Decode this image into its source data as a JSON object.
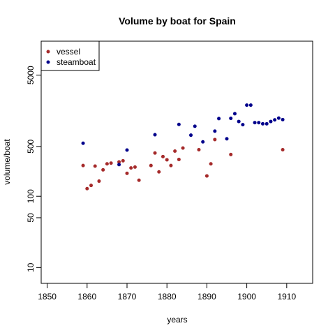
{
  "chart_data": {
    "type": "scatter",
    "title": "Volume by boat for Spain",
    "xlabel": "years",
    "ylabel": "volume/boat",
    "xlim": [
      1848.5,
      1916.5
    ],
    "ylim": [
      6,
      15000
    ],
    "ylog": true,
    "x_ticks": [
      1850,
      1860,
      1870,
      1880,
      1890,
      1900,
      1910
    ],
    "y_ticks": [
      10,
      50,
      100,
      500,
      5000
    ],
    "legend_position": "top-left",
    "series": [
      {
        "name": "vessel",
        "color": "#a52a2a",
        "points": [
          [
            1859,
            270
          ],
          [
            1860,
            128
          ],
          [
            1861,
            142
          ],
          [
            1862,
            265
          ],
          [
            1863,
            163
          ],
          [
            1864,
            235
          ],
          [
            1865,
            285
          ],
          [
            1866,
            292
          ],
          [
            1868,
            303
          ],
          [
            1869,
            315
          ],
          [
            1870,
            210
          ],
          [
            1871,
            250
          ],
          [
            1872,
            257
          ],
          [
            1873,
            168
          ],
          [
            1876,
            270
          ],
          [
            1877,
            405
          ],
          [
            1878,
            220
          ],
          [
            1879,
            360
          ],
          [
            1880,
            325
          ],
          [
            1881,
            270
          ],
          [
            1882,
            430
          ],
          [
            1883,
            328
          ],
          [
            1884,
            475
          ],
          [
            1888,
            450
          ],
          [
            1890,
            193
          ],
          [
            1891,
            285
          ],
          [
            1892,
            625
          ],
          [
            1896,
            385
          ],
          [
            1909,
            450
          ]
        ]
      },
      {
        "name": "steamboat",
        "color": "#00008b",
        "points": [
          [
            1859,
            555
          ],
          [
            1868,
            278
          ],
          [
            1870,
            445
          ],
          [
            1877,
            730
          ],
          [
            1883,
            1020
          ],
          [
            1886,
            720
          ],
          [
            1887,
            960
          ],
          [
            1889,
            580
          ],
          [
            1892,
            820
          ],
          [
            1893,
            1230
          ],
          [
            1895,
            640
          ],
          [
            1896,
            1240
          ],
          [
            1897,
            1440
          ],
          [
            1898,
            1120
          ],
          [
            1899,
            1010
          ],
          [
            1900,
            1900
          ],
          [
            1901,
            1900
          ],
          [
            1902,
            1080
          ],
          [
            1903,
            1080
          ],
          [
            1904,
            1040
          ],
          [
            1905,
            1040
          ],
          [
            1906,
            1120
          ],
          [
            1907,
            1180
          ],
          [
            1908,
            1250
          ],
          [
            1909,
            1190
          ]
        ]
      }
    ]
  }
}
